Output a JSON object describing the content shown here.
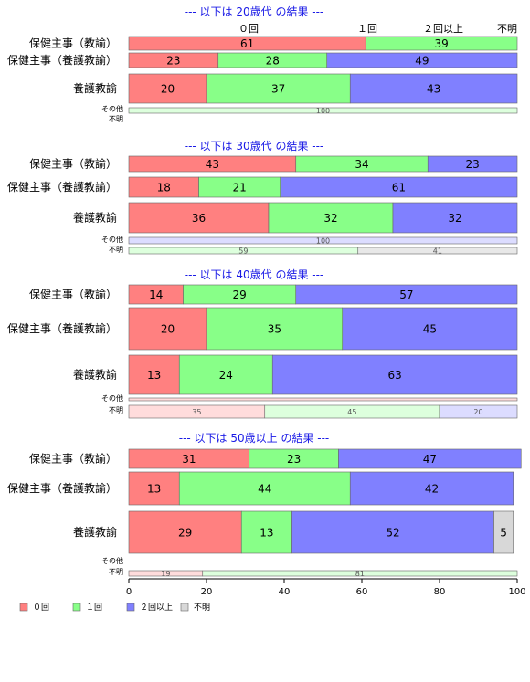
{
  "chart_data": {
    "type": "bar",
    "orientation": "horizontal-stacked-percent",
    "legend_position": "bottom-left",
    "column_headers": [
      "０回",
      "１回",
      "２回以上",
      "不明"
    ],
    "categories": [
      "０回",
      "１回",
      "２回以上",
      "不明"
    ],
    "colors": {
      "c0": "#ff8080",
      "c1": "#88ff88",
      "c2": "#8080ff",
      "c3": "#d8d8d8"
    },
    "light_colors": {
      "c0": "#ffdcdc",
      "c1": "#ddffdd",
      "c2": "#dcdcff",
      "c3": "#e8e8e8"
    },
    "xlim": [
      0,
      100
    ],
    "xticks": [
      "0",
      "20",
      "40",
      "60",
      "80",
      "100"
    ],
    "legend": [
      {
        "label": "０回",
        "color": "#ff8080"
      },
      {
        "label": "１回",
        "color": "#88ff88"
      },
      {
        "label": "２回以上",
        "color": "#8080ff"
      },
      {
        "label": "不明",
        "color": "#d8d8d8"
      }
    ],
    "panels": [
      {
        "title": "--- 以下は 20歳代 の結果 ---",
        "rows": [
          {
            "label": "保健主事（教諭）",
            "values": [
              61,
              39,
              0,
              0
            ]
          },
          {
            "label": "保健主事（養護教諭）",
            "values": [
              23,
              28,
              49,
              0
            ]
          },
          {
            "label": "養護教諭",
            "values": [
              20,
              37,
              43,
              0
            ]
          },
          {
            "label": "その他",
            "values": [
              0,
              100,
              0,
              0
            ],
            "small": true
          },
          {
            "label": "不明",
            "values": [],
            "small": true
          }
        ]
      },
      {
        "title": "--- 以下は 30歳代 の結果 ---",
        "rows": [
          {
            "label": "保健主事（教諭）",
            "values": [
              43,
              34,
              23,
              0
            ]
          },
          {
            "label": "保健主事（養護教諭）",
            "values": [
              18,
              21,
              61,
              0
            ]
          },
          {
            "label": "養護教諭",
            "values": [
              36,
              32,
              32,
              0
            ]
          },
          {
            "label": "その他",
            "values": [
              0,
              0,
              100,
              0
            ],
            "small": true
          },
          {
            "label": "不明",
            "values": [
              0,
              59,
              0,
              41
            ],
            "small": true
          }
        ]
      },
      {
        "title": "--- 以下は 40歳代 の結果 ---",
        "rows": [
          {
            "label": "保健主事（教諭）",
            "values": [
              14,
              29,
              57,
              0
            ]
          },
          {
            "label": "保健主事（養護教諭）",
            "values": [
              20,
              35,
              45,
              0
            ]
          },
          {
            "label": "養護教諭",
            "values": [
              13,
              24,
              63,
              0
            ]
          },
          {
            "label": "その他",
            "values": [
              100,
              0,
              0,
              0
            ],
            "small": true
          },
          {
            "label": "不明",
            "values": [
              35,
              45,
              20,
              0
            ],
            "small": true
          }
        ]
      },
      {
        "title": "--- 以下は 50歳以上 の結果 ---",
        "rows": [
          {
            "label": "保健主事（教諭）",
            "values": [
              31,
              23,
              47,
              0
            ]
          },
          {
            "label": "保健主事（養護教諭）",
            "values": [
              13,
              44,
              42,
              0
            ]
          },
          {
            "label": "養護教諭",
            "values": [
              29,
              13,
              52,
              5
            ]
          },
          {
            "label": "その他",
            "values": [],
            "small": true
          },
          {
            "label": "不明",
            "values": [
              19,
              81,
              0,
              0
            ],
            "small": true
          }
        ]
      }
    ]
  }
}
